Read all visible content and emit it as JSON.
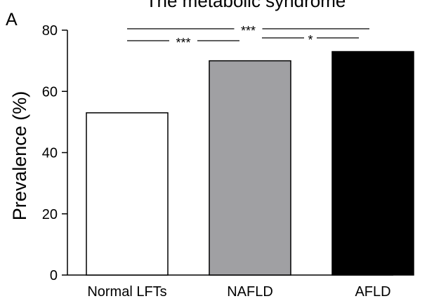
{
  "panel_label": "A",
  "chart_data": {
    "type": "bar",
    "title": "The metabolic syndrome",
    "xlabel": "",
    "ylabel": "Prevalence (%)",
    "ylim": [
      0,
      80
    ],
    "yticks": [
      0,
      20,
      40,
      60,
      80
    ],
    "categories": [
      "Normal LFTs",
      "NAFLD",
      "AFLD"
    ],
    "values": [
      53,
      70,
      73
    ],
    "bar_colors": [
      "#ffffff",
      "#a0a0a3",
      "#000000"
    ],
    "grid": false,
    "significance": [
      {
        "from": "Normal LFTs",
        "to": "NAFLD",
        "label": "***"
      },
      {
        "from": "Normal LFTs",
        "to": "AFLD",
        "label": "***"
      },
      {
        "from": "NAFLD",
        "to": "AFLD",
        "label": "*"
      }
    ]
  }
}
